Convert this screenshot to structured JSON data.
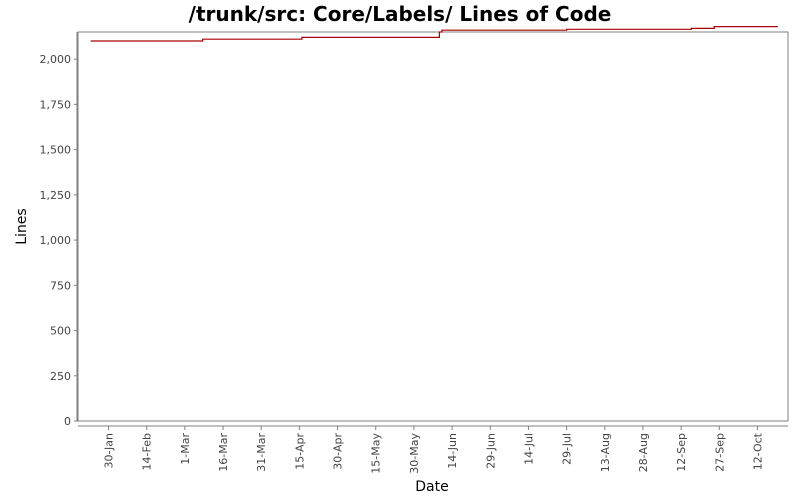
{
  "colors": {
    "line": "#aa0000",
    "plot_border": "#808080",
    "tick_text": "#444444",
    "axis_label": "#000000",
    "background": "#ffffff"
  },
  "chart_data": {
    "type": "line",
    "title": "/trunk/src: Core/Labels/ Lines of Code",
    "xlabel": "Date",
    "ylabel": "Lines",
    "ylim": [
      0,
      2150
    ],
    "xlim": [
      "2007-01-18",
      "2007-10-24"
    ],
    "x_ticks": [
      "2007-01-30",
      "2007-02-14",
      "2007-03-01",
      "2007-03-16",
      "2007-03-31",
      "2007-04-15",
      "2007-04-30",
      "2007-05-15",
      "2007-05-30",
      "2007-06-14",
      "2007-06-29",
      "2007-07-14",
      "2007-07-29",
      "2007-08-13",
      "2007-08-28",
      "2007-09-12",
      "2007-09-27",
      "2007-10-12"
    ],
    "x_tick_labels": [
      "30-Jan",
      "14-Feb",
      "1-Mar",
      "16-Mar",
      "31-Mar",
      "15-Apr",
      "30-Apr",
      "15-May",
      "30-May",
      "14-Jun",
      "29-Jun",
      "14-Jul",
      "29-Jul",
      "13-Aug",
      "28-Aug",
      "12-Sep",
      "27-Sep",
      "12-Oct"
    ],
    "y_ticks": [
      0,
      250,
      500,
      750,
      1000,
      1250,
      1500,
      1750,
      2000
    ],
    "y_tick_labels": [
      "0",
      "250",
      "500",
      "750",
      "1,000",
      "1,250",
      "1,500",
      "1,750",
      "2,000"
    ],
    "grid": false,
    "series": [
      {
        "x": [
          "2007-01-23",
          "2007-03-08",
          "2007-04-16",
          "2007-06-09",
          "2007-06-10",
          "2007-07-29",
          "2007-09-16",
          "2007-09-25",
          "2007-10-20"
        ],
        "y": [
          2100,
          2110,
          2120,
          2150,
          2160,
          2165,
          2170,
          2180,
          2180
        ]
      }
    ]
  }
}
